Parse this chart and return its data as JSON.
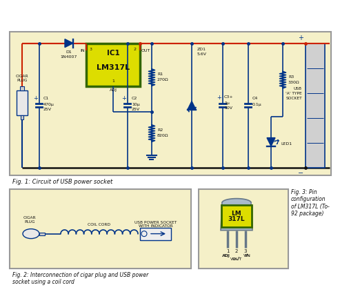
{
  "bg_color": "#f5f0c8",
  "border_color": "#999999",
  "red": "#cc2200",
  "blue": "#003388",
  "black": "#111111",
  "ic_fill": "#dddd00",
  "ic_border": "#336600",
  "fig1_caption": "Fig. 1: Circuit of USB power socket",
  "fig2_caption": "Fig. 2: Interconnection of cigar plug and USB power\nsocket using a coil cord",
  "fig3_caption": "Fig. 3: Pin\nconfiguration\nof LM317L (To-\n92 package)"
}
